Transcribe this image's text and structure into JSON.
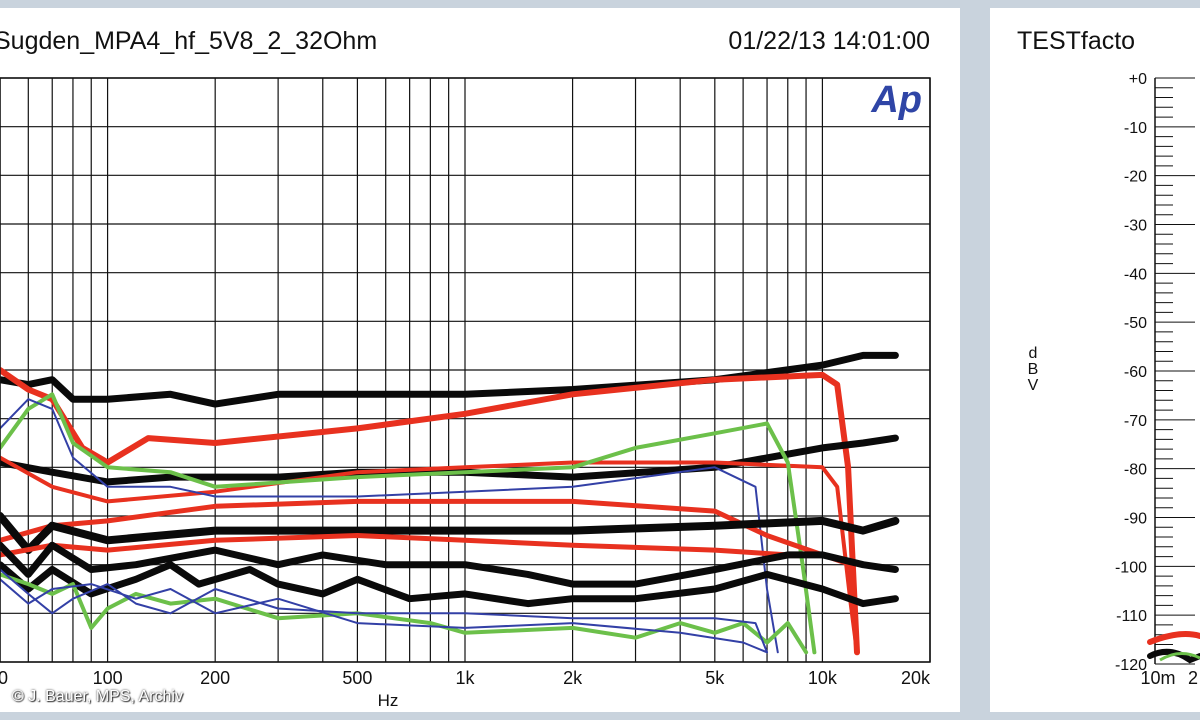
{
  "colors": {
    "background": "#c9d3dd",
    "black": "#0a0a0a",
    "red": "#e8311f",
    "green": "#6cc04a",
    "blue": "#3340a6",
    "logo": "#2f45a6"
  },
  "credit": "© J. Bauer, MPS, Archiv",
  "chart_data": [
    {
      "type": "line",
      "title": "Sugden_MPA4_hf_5V8_2_32Ohm",
      "timestamp": "01/22/13 14:01:00",
      "logo": "Ap",
      "xlabel": "Hz",
      "x_scale": "log",
      "xlim": [
        50,
        20000
      ],
      "ylim": [
        -120,
        0
      ],
      "grid": true,
      "x_tick_labels": [
        {
          "label": "100",
          "value": 100
        },
        {
          "label": "200",
          "value": 200
        },
        {
          "label": "500",
          "value": 500
        },
        {
          "label": "1k",
          "value": 1000
        },
        {
          "label": "2k",
          "value": 2000
        },
        {
          "label": "5k",
          "value": 5000
        },
        {
          "label": "10k",
          "value": 10000
        },
        {
          "label": "20k",
          "value": 20000
        }
      ],
      "x_edge_label": "0",
      "series": [
        {
          "color": "black",
          "width": 7,
          "points": [
            [
              50,
              -62
            ],
            [
              60,
              -63
            ],
            [
              70,
              -62
            ],
            [
              80,
              -66
            ],
            [
              100,
              -66
            ],
            [
              150,
              -65
            ],
            [
              200,
              -67
            ],
            [
              300,
              -65
            ],
            [
              500,
              -65
            ],
            [
              1000,
              -65
            ],
            [
              2000,
              -64
            ],
            [
              5000,
              -62
            ],
            [
              10000,
              -59
            ],
            [
              13000,
              -57
            ],
            [
              16000,
              -57
            ]
          ]
        },
        {
          "color": "red",
          "width": 6,
          "points": [
            [
              50,
              -60
            ],
            [
              60,
              -64
            ],
            [
              70,
              -66
            ],
            [
              85,
              -76
            ],
            [
              100,
              -79
            ],
            [
              130,
              -74
            ],
            [
              200,
              -75
            ],
            [
              500,
              -72
            ],
            [
              1000,
              -69
            ],
            [
              2000,
              -65
            ],
            [
              5000,
              -62
            ],
            [
              10000,
              -61
            ],
            [
              11000,
              -63
            ],
            [
              11800,
              -80
            ],
            [
              12500,
              -118
            ]
          ]
        },
        {
          "color": "black",
          "width": 7,
          "points": [
            [
              50,
              -79
            ],
            [
              70,
              -81
            ],
            [
              100,
              -83
            ],
            [
              150,
              -82
            ],
            [
              300,
              -82
            ],
            [
              500,
              -81
            ],
            [
              1000,
              -81
            ],
            [
              2000,
              -82
            ],
            [
              5000,
              -80
            ],
            [
              10000,
              -76
            ],
            [
              13000,
              -75
            ],
            [
              16000,
              -74
            ]
          ]
        },
        {
          "color": "red",
          "width": 4,
          "points": [
            [
              50,
              -78
            ],
            [
              70,
              -84
            ],
            [
              100,
              -87
            ],
            [
              200,
              -85
            ],
            [
              500,
              -81
            ],
            [
              1000,
              -80
            ],
            [
              2000,
              -79
            ],
            [
              5000,
              -79
            ],
            [
              10000,
              -80
            ],
            [
              11000,
              -84
            ],
            [
              12000,
              -108
            ],
            [
              12500,
              -118
            ]
          ]
        },
        {
          "color": "green",
          "width": 4,
          "points": [
            [
              50,
              -76
            ],
            [
              60,
              -68
            ],
            [
              70,
              -65
            ],
            [
              80,
              -75
            ],
            [
              100,
              -80
            ],
            [
              150,
              -81
            ],
            [
              200,
              -84
            ],
            [
              500,
              -82
            ],
            [
              1000,
              -81
            ],
            [
              2000,
              -80
            ],
            [
              3000,
              -76
            ],
            [
              5000,
              -73
            ],
            [
              7000,
              -71
            ],
            [
              8000,
              -79
            ],
            [
              8800,
              -100
            ],
            [
              9500,
              -118
            ]
          ]
        },
        {
          "color": "blue",
          "width": 2,
          "points": [
            [
              50,
              -72
            ],
            [
              60,
              -66
            ],
            [
              70,
              -68
            ],
            [
              80,
              -78
            ],
            [
              100,
              -84
            ],
            [
              150,
              -84
            ],
            [
              200,
              -86
            ],
            [
              500,
              -86
            ],
            [
              1000,
              -85
            ],
            [
              2000,
              -84
            ],
            [
              5000,
              -80
            ],
            [
              6500,
              -84
            ],
            [
              7000,
              -105
            ],
            [
              7500,
              -118
            ]
          ]
        },
        {
          "color": "red",
          "width": 5,
          "points": [
            [
              50,
              -95
            ],
            [
              70,
              -92
            ],
            [
              100,
              -91
            ],
            [
              200,
              -88
            ],
            [
              500,
              -87
            ],
            [
              1000,
              -87
            ],
            [
              2000,
              -87
            ],
            [
              5000,
              -89
            ],
            [
              7000,
              -94
            ],
            [
              10000,
              -98
            ],
            [
              12000,
              -100
            ],
            [
              12500,
              -118
            ]
          ]
        },
        {
          "color": "black",
          "width": 8,
          "points": [
            [
              50,
              -90
            ],
            [
              60,
              -97
            ],
            [
              70,
              -92
            ],
            [
              100,
              -95
            ],
            [
              200,
              -93
            ],
            [
              500,
              -93
            ],
            [
              1000,
              -93
            ],
            [
              2000,
              -93
            ],
            [
              5000,
              -92
            ],
            [
              10000,
              -91
            ],
            [
              13000,
              -93
            ],
            [
              16000,
              -91
            ]
          ]
        },
        {
          "color": "red",
          "width": 5,
          "points": [
            [
              50,
              -98
            ],
            [
              70,
              -96
            ],
            [
              100,
              -97
            ],
            [
              200,
              -95
            ],
            [
              500,
              -94
            ],
            [
              1000,
              -95
            ],
            [
              2000,
              -96
            ],
            [
              5000,
              -97
            ],
            [
              8000,
              -98
            ],
            [
              10000,
              -98
            ]
          ]
        },
        {
          "color": "black",
          "width": 7,
          "points": [
            [
              50,
              -96
            ],
            [
              60,
              -102
            ],
            [
              70,
              -96
            ],
            [
              90,
              -101
            ],
            [
              120,
              -100
            ],
            [
              200,
              -97
            ],
            [
              300,
              -100
            ],
            [
              400,
              -98
            ],
            [
              600,
              -100
            ],
            [
              1000,
              -100
            ],
            [
              1500,
              -102
            ],
            [
              2000,
              -104
            ],
            [
              3000,
              -104
            ],
            [
              5000,
              -101
            ],
            [
              8000,
              -98
            ],
            [
              10000,
              -98
            ],
            [
              13000,
              -100
            ],
            [
              16000,
              -101
            ]
          ]
        },
        {
          "color": "black",
          "width": 7,
          "points": [
            [
              50,
              -100
            ],
            [
              60,
              -105
            ],
            [
              70,
              -101
            ],
            [
              90,
              -106
            ],
            [
              120,
              -103
            ],
            [
              150,
              -100
            ],
            [
              180,
              -104
            ],
            [
              250,
              -101
            ],
            [
              300,
              -104
            ],
            [
              400,
              -106
            ],
            [
              500,
              -103
            ],
            [
              700,
              -107
            ],
            [
              1000,
              -106
            ],
            [
              1500,
              -108
            ],
            [
              2000,
              -107
            ],
            [
              3000,
              -107
            ],
            [
              5000,
              -105
            ],
            [
              7000,
              -102
            ],
            [
              10000,
              -105
            ],
            [
              13000,
              -108
            ],
            [
              16000,
              -107
            ]
          ]
        },
        {
          "color": "green",
          "width": 4,
          "points": [
            [
              50,
              -102
            ],
            [
              60,
              -104
            ],
            [
              70,
              -106
            ],
            [
              80,
              -104
            ],
            [
              90,
              -113
            ],
            [
              100,
              -109
            ],
            [
              120,
              -106
            ],
            [
              150,
              -108
            ],
            [
              200,
              -107
            ],
            [
              300,
              -111
            ],
            [
              500,
              -110
            ],
            [
              800,
              -112
            ],
            [
              1000,
              -114
            ],
            [
              2000,
              -113
            ],
            [
              3000,
              -115
            ],
            [
              4000,
              -112
            ],
            [
              5000,
              -114
            ],
            [
              6000,
              -112
            ],
            [
              7000,
              -116
            ],
            [
              8000,
              -112
            ],
            [
              9000,
              -118
            ]
          ]
        },
        {
          "color": "blue",
          "width": 2,
          "points": [
            [
              50,
              -101
            ],
            [
              60,
              -106
            ],
            [
              70,
              -110
            ],
            [
              80,
              -107
            ],
            [
              100,
              -104
            ],
            [
              120,
              -108
            ],
            [
              150,
              -110
            ],
            [
              200,
              -105
            ],
            [
              300,
              -109
            ],
            [
              500,
              -110
            ],
            [
              1000,
              -110
            ],
            [
              2000,
              -111
            ],
            [
              5000,
              -111
            ],
            [
              6500,
              -112
            ],
            [
              7000,
              -118
            ]
          ]
        },
        {
          "color": "blue",
          "width": 2,
          "points": [
            [
              50,
              -103
            ],
            [
              60,
              -108
            ],
            [
              70,
              -105
            ],
            [
              90,
              -104
            ],
            [
              120,
              -107
            ],
            [
              150,
              -105
            ],
            [
              200,
              -110
            ],
            [
              300,
              -107
            ],
            [
              500,
              -112
            ],
            [
              1000,
              -113
            ],
            [
              2000,
              -112
            ],
            [
              4000,
              -114
            ],
            [
              6000,
              -116
            ],
            [
              7000,
              -118
            ]
          ]
        }
      ]
    },
    {
      "type": "line",
      "title": "TESTfacto",
      "ylabel": "d B V",
      "ylim": [
        -120,
        0
      ],
      "y_tick_labels": [
        "+0",
        "-10",
        "-20",
        "-30",
        "-40",
        "-50",
        "-60",
        "-70",
        "-80",
        "-90",
        "-100",
        "-110",
        "-120"
      ],
      "x_tick_labels": [
        "10m",
        "2"
      ]
    }
  ]
}
